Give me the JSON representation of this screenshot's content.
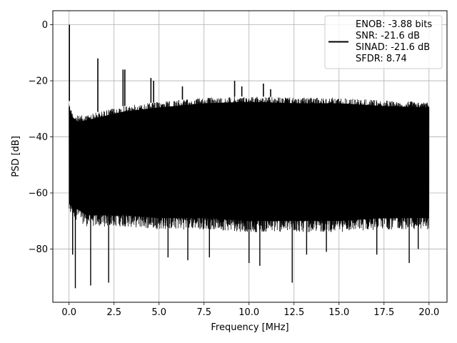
{
  "chart_data": {
    "type": "line",
    "title": "",
    "xlabel": "Frequency [MHz]",
    "ylabel": "PSD [dB]",
    "xlim": [
      -0.9,
      21.0
    ],
    "ylim": [
      -99,
      5
    ],
    "xticks": [
      0.0,
      2.5,
      5.0,
      7.5,
      10.0,
      12.5,
      15.0,
      17.5,
      20.0
    ],
    "xtick_labels": [
      "0.0",
      "2.5",
      "5.0",
      "7.5",
      "10.0",
      "12.5",
      "15.0",
      "17.5",
      "20.0"
    ],
    "yticks": [
      0,
      -20,
      -40,
      -60,
      -80
    ],
    "ytick_labels": [
      "0",
      "−20",
      "−40",
      "−60",
      "−80"
    ],
    "grid": true,
    "legend_position": "top-right",
    "legend_entries": [
      "ENOB: -3.88 bits",
      "SNR: -21.6 dB",
      "SINAD: -21.6 dB",
      "SFDR: 8.74"
    ],
    "series_color": "#000000",
    "series": [
      {
        "style": "dense noise floor",
        "x_range": [
          0,
          20
        ],
        "upper_envelope": [
          [
            0.0,
            -26
          ],
          [
            0.05,
            -29
          ],
          [
            0.2,
            -31
          ],
          [
            0.5,
            -32.5
          ],
          [
            1.0,
            -32
          ],
          [
            2.0,
            -30.5
          ],
          [
            3.0,
            -29
          ],
          [
            5.0,
            -27.5
          ],
          [
            7.5,
            -26
          ],
          [
            10.0,
            -25.5
          ],
          [
            12.5,
            -26
          ],
          [
            15.0,
            -26
          ],
          [
            17.5,
            -27
          ],
          [
            20.0,
            -27.5
          ]
        ],
        "lower_envelope": [
          [
            0.0,
            -68
          ],
          [
            1.0,
            -72
          ],
          [
            3.0,
            -72
          ],
          [
            5.0,
            -73
          ],
          [
            7.5,
            -73
          ],
          [
            10.0,
            -74
          ],
          [
            12.5,
            -74
          ],
          [
            15.0,
            -74
          ],
          [
            17.5,
            -73
          ],
          [
            20.0,
            -73
          ]
        ],
        "deep_notches": [
          [
            0.2,
            -82
          ],
          [
            0.35,
            -94
          ],
          [
            1.2,
            -93
          ],
          [
            2.2,
            -92
          ],
          [
            5.5,
            -83
          ],
          [
            6.6,
            -84
          ],
          [
            7.8,
            -83
          ],
          [
            10.0,
            -85
          ],
          [
            10.6,
            -86
          ],
          [
            12.4,
            -92
          ],
          [
            13.2,
            -82
          ],
          [
            14.3,
            -81
          ],
          [
            17.1,
            -82
          ],
          [
            18.9,
            -85
          ],
          [
            19.4,
            -80
          ]
        ]
      },
      {
        "style": "spurs",
        "points": [
          [
            0.02,
            0
          ],
          [
            1.6,
            -12
          ],
          [
            3.0,
            -16
          ],
          [
            3.1,
            -16
          ],
          [
            4.55,
            -19
          ],
          [
            4.7,
            -20
          ],
          [
            6.3,
            -22
          ],
          [
            9.2,
            -20
          ],
          [
            9.6,
            -22
          ],
          [
            10.8,
            -21
          ],
          [
            11.2,
            -23
          ]
        ]
      }
    ]
  }
}
